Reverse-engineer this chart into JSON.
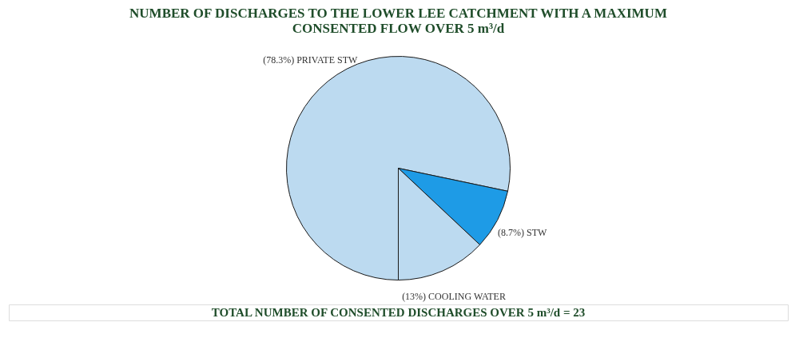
{
  "chart_data": {
    "type": "pie",
    "title": "NUMBER OF DISCHARGES TO THE LOWER LEE CATCHMENT WITH A MAXIMUM CONSENTED FLOW OVER 5 m³/d",
    "categories": [
      "PRIVATE STW",
      "STW",
      "COOLING WATER"
    ],
    "values": [
      78.3,
      8.7,
      13
    ],
    "value_labels": [
      "(78.3%)",
      "(8.7%)",
      "(13%)"
    ],
    "colors": [
      "#bcdaf0",
      "#1e9be6",
      "#bcdaf0"
    ],
    "annotations": [
      "TOTAL NUMBER OF CONSENTED DISCHARGES OVER 5 m³/d = 23"
    ],
    "legend": false
  }
}
